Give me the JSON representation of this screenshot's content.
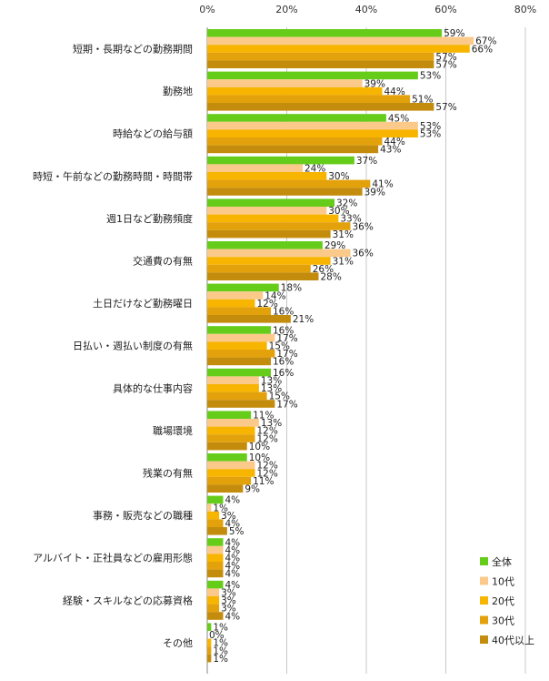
{
  "chart_data": {
    "type": "bar",
    "orientation": "horizontal",
    "xlim": [
      0,
      80
    ],
    "x_ticks": [
      "0%",
      "20%",
      "40%",
      "60%",
      "80%"
    ],
    "grid": true,
    "legend_position": "bottom-right",
    "categories": [
      "短期・長期などの勤務期間",
      "勤務地",
      "時給などの給与額",
      "時短・午前などの勤務時間・時間帯",
      "週1日など勤務頻度",
      "交通費の有無",
      "土日だけなど勤務曜日",
      "日払い・週払い制度の有無",
      "具体的な仕事内容",
      "職場環境",
      "残業の有無",
      "事務・販売などの職種",
      "アルバイト・正社員などの雇用形態",
      "経験・スキルなどの応募資格",
      "その他"
    ],
    "series": [
      {
        "name": "全体",
        "color": "#66cc1a",
        "values": [
          59,
          53,
          45,
          37,
          32,
          29,
          18,
          16,
          16,
          11,
          10,
          4,
          4,
          4,
          1
        ]
      },
      {
        "name": "10代",
        "color": "#fbc98a",
        "values": [
          67,
          39,
          53,
          24,
          30,
          36,
          14,
          17,
          13,
          13,
          12,
          1,
          4,
          3,
          0
        ]
      },
      {
        "name": "20代",
        "color": "#f7b500",
        "values": [
          66,
          44,
          53,
          30,
          33,
          31,
          12,
          15,
          13,
          12,
          12,
          3,
          4,
          3,
          1
        ]
      },
      {
        "name": "30代",
        "color": "#e3a10c",
        "values": [
          57,
          51,
          44,
          41,
          36,
          26,
          16,
          17,
          15,
          12,
          11,
          4,
          4,
          3,
          1
        ]
      },
      {
        "name": "40代以上",
        "color": "#c48c0c",
        "values": [
          57,
          57,
          43,
          39,
          31,
          28,
          21,
          16,
          17,
          10,
          9,
          5,
          4,
          4,
          1
        ]
      }
    ]
  }
}
